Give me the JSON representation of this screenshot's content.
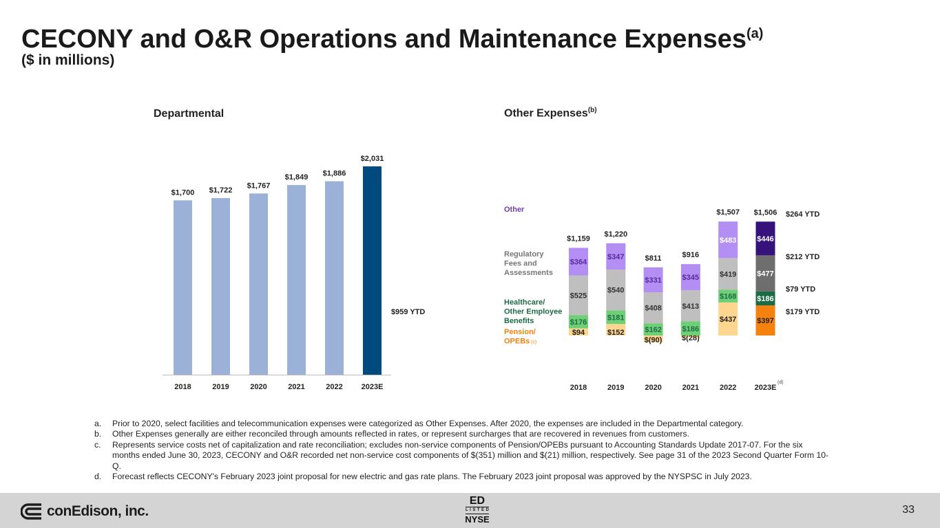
{
  "header": {
    "title": "CECONY and O&R Operations and Maintenance Expenses",
    "title_note": "(a)",
    "subtitle": "($ in millions)"
  },
  "chart_data": [
    {
      "type": "bar",
      "title": "Departmental",
      "categories": [
        "2018",
        "2019",
        "2020",
        "2021",
        "2022",
        "2023E"
      ],
      "values": [
        1700,
        1722,
        1767,
        1849,
        1886,
        2031
      ],
      "value_labels": [
        "$1,700",
        "$1,722",
        "$1,767",
        "$1,849",
        "$1,886",
        "$2,031"
      ],
      "colors": [
        "#9bb1d8",
        "#9bb1d8",
        "#9bb1d8",
        "#9bb1d8",
        "#9bb1d8",
        "#004a80"
      ],
      "annotation": "$959 YTD",
      "ylim": [
        0,
        2031
      ]
    },
    {
      "type": "bar",
      "stacked": true,
      "title": "Other Expenses",
      "title_note": "(b)",
      "categories": [
        "2018",
        "2019",
        "2020",
        "2021",
        "2022",
        "2023E"
      ],
      "category_note": "(d)",
      "series": [
        {
          "name": "Pension/ OPEBs",
          "name_note": "(c)",
          "values": [
            94,
            152,
            -90,
            -28,
            437,
            397
          ],
          "labels": [
            "$94",
            "$152",
            "$(90)",
            "$(28)",
            "$437",
            "$397"
          ],
          "colors": [
            "#ffd68f",
            "#ffd68f",
            "#ffd68f",
            "#ffd68f",
            "#ffd68f",
            "#f5820f"
          ],
          "label_color": "#222222"
        },
        {
          "name": "Healthcare/ Other Employee Benefits",
          "values": [
            176,
            181,
            162,
            186,
            168,
            186
          ],
          "labels": [
            "$176",
            "$181",
            "$162",
            "$186",
            "$168",
            "$186"
          ],
          "colors": [
            "#6fcf77",
            "#6fcf77",
            "#6fcf77",
            "#6fcf77",
            "#6fcf77",
            "#1c6b45"
          ],
          "label_color": "#1c6b45"
        },
        {
          "name": "Regulatory Fees and Assessments",
          "values": [
            525,
            540,
            408,
            413,
            419,
            477
          ],
          "labels": [
            "$525",
            "$540",
            "$408",
            "$413",
            "$419",
            "$477"
          ],
          "colors": [
            "#bfbfbf",
            "#bfbfbf",
            "#bfbfbf",
            "#bfbfbf",
            "#bfbfbf",
            "#6e6e6e"
          ],
          "label_color": "#333333"
        },
        {
          "name": "Other",
          "values": [
            364,
            347,
            331,
            345,
            483,
            446
          ],
          "labels": [
            "$364",
            "$347",
            "$331",
            "$345",
            "$483",
            "$446"
          ],
          "colors": [
            "#b38ef3",
            "#b38ef3",
            "#b38ef3",
            "#b38ef3",
            "#b38ef3",
            "#35137a"
          ],
          "label_color": "#5a2a9e"
        }
      ],
      "totals": [
        1159,
        1220,
        811,
        916,
        1507,
        1506
      ],
      "total_labels": [
        "$1,159",
        "$1,220",
        "$811",
        "$916",
        "$1,507",
        "$1,506"
      ],
      "legend_colors": {
        "Pension/ OPEBs": "#f5820f",
        "Healthcare/ Other Employee Benefits": "#1c6b45",
        "Regulatory Fees and Assessments": "#777777",
        "Other": "#6f3fa8"
      },
      "ytd_annotations": [
        "$264 YTD",
        "$212 YTD",
        "$79 YTD",
        "$179 YTD"
      ]
    }
  ],
  "footnotes": [
    {
      "letter": "a.",
      "text": "Prior to 2020, select facilities and telecommunication expenses were categorized as Other Expenses. After 2020, the expenses are included in the Departmental category."
    },
    {
      "letter": "b.",
      "text": "Other Expenses generally are either reconciled through amounts reflected in rates, or represent surcharges that are recovered in revenues from customers."
    },
    {
      "letter": "c.",
      "text": "Represents service costs net of capitalization and rate reconciliation; excludes non-service components of Pension/OPEBs pursuant to Accounting Standards Update 2017-07. For the six months ended June 30, 2023, CECONY and O&R recorded net non-service cost components of $(351) million and $(21) million, respectively. See page 31 of the 2023 Second Quarter Form 10-Q."
    },
    {
      "letter": "d.",
      "text": "Forecast reflects CECONY's February 2023 joint proposal for new electric and gas rate plans. The February 2023 joint proposal was approved by the NYSPSC in July 2023."
    }
  ],
  "footer": {
    "logo_text": "conEdison, inc.",
    "nyse_top": "ED",
    "nyse_mid": "LISTED",
    "nyse_bottom": "NYSE",
    "page_number": "33"
  }
}
